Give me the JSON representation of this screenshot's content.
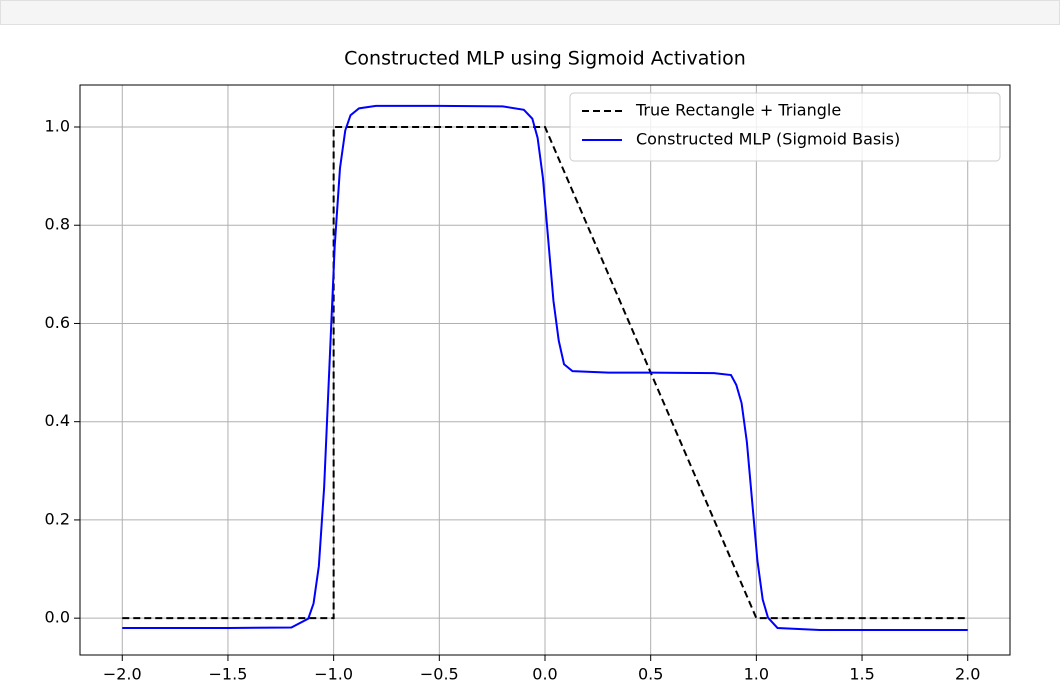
{
  "chart_data": {
    "type": "line",
    "title": "Constructed MLP using Sigmoid Activation",
    "xlim": [
      -2.2,
      2.2
    ],
    "ylim": [
      -0.075,
      1.0855
    ],
    "xticks": [
      {
        "value": -2,
        "label": "−2.0"
      },
      {
        "value": -1.5,
        "label": "−1.5"
      },
      {
        "value": -1,
        "label": "−1.0"
      },
      {
        "value": -0.5,
        "label": "−0.5"
      },
      {
        "value": 0,
        "label": "0.0"
      },
      0.5,
      {
        "value": 1,
        "label": "1.0"
      },
      1.5,
      {
        "value": 2,
        "label": "2.0"
      }
    ],
    "yticks": [
      {
        "value": 0,
        "label": "0.0"
      },
      0.2,
      0.4,
      0.6,
      0.8,
      {
        "value": 1,
        "label": "1.0"
      }
    ],
    "grid": true,
    "legend": "upper right",
    "series": [
      {
        "name": "True Rectangle + Triangle",
        "color": "#000000",
        "dash": true,
        "x": [
          -2,
          -1,
          -1,
          0,
          1,
          2
        ],
        "values": [
          0,
          0,
          1,
          1,
          0,
          0
        ]
      },
      {
        "name": "Constructed MLP (Sigmoid Basis)",
        "color": "#0000ff",
        "dash": false,
        "x": [
          -2,
          -1.5,
          -1.2,
          -1.12,
          -1.095,
          -1.07,
          -1.045,
          -1.02,
          -0.995,
          -0.97,
          -0.945,
          -0.92,
          -0.88,
          -0.8,
          -0.5,
          -0.2,
          -0.1,
          -0.06,
          -0.035,
          -0.01,
          0.015,
          0.04,
          0.065,
          0.09,
          0.13,
          0.3,
          0.5,
          0.8,
          0.88,
          0.905,
          0.93,
          0.955,
          0.98,
          1.005,
          1.03,
          1.055,
          1.1,
          1.3,
          2
        ],
        "values": [
          -0.02,
          -0.02,
          -0.019,
          -0.001,
          0.03,
          0.106,
          0.266,
          0.512,
          0.757,
          0.916,
          0.993,
          1.024,
          1.038,
          1.043,
          1.043,
          1.042,
          1.035,
          1.017,
          0.978,
          0.897,
          0.772,
          0.646,
          0.565,
          0.517,
          0.503,
          0.5,
          0.5,
          0.499,
          0.495,
          0.475,
          0.438,
          0.359,
          0.238,
          0.117,
          0.038,
          0.001,
          -0.02,
          -0.024,
          -0.024
        ]
      }
    ]
  }
}
